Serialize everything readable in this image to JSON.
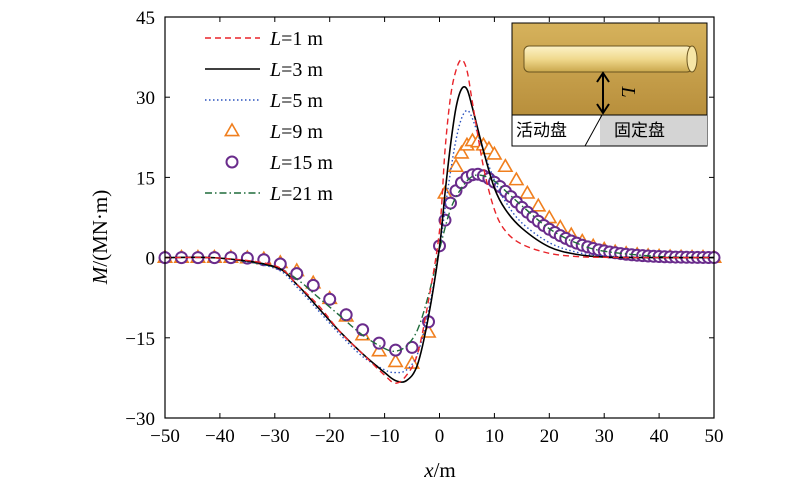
{
  "chart_data": {
    "type": "line",
    "xlabel_var": "x",
    "xlabel_unit": "/m",
    "ylabel_var": "M",
    "ylabel_unit": "/(MN·m)",
    "xlim": [
      -50,
      50
    ],
    "ylim": [
      -30,
      45
    ],
    "xticks": [
      -50,
      -40,
      -30,
      -20,
      -10,
      0,
      10,
      20,
      30,
      40,
      50
    ],
    "yticks": [
      -30,
      -15,
      0,
      15,
      30,
      45
    ],
    "xtick_labels": [
      "−50",
      "−40",
      "−30",
      "−20",
      "−10",
      "0",
      "10",
      "20",
      "30",
      "40",
      "50"
    ],
    "ytick_labels": [
      "−30",
      "−15",
      "0",
      "15",
      "30",
      "45"
    ],
    "grid": false,
    "legend_position": "top-left",
    "series": [
      {
        "name": "L=1 m",
        "legend_var": "L",
        "legend_rest": "=1 m",
        "color": "#e8242a",
        "style": "dashed",
        "x": [
          -50,
          -40,
          -30,
          -26,
          -22,
          -18,
          -14,
          -10,
          -8,
          -6,
          -4,
          -2,
          0,
          1,
          2,
          3,
          4,
          5,
          6,
          8,
          10,
          12,
          15,
          20,
          25,
          30,
          40,
          50
        ],
        "y": [
          0,
          -0.1,
          -1.5,
          -5,
          -9,
          -14,
          -18,
          -22,
          -23.5,
          -22,
          -18,
          -8,
          5,
          20,
          30,
          35,
          37,
          35,
          29,
          17,
          9,
          5,
          2.5,
          0.8,
          0.2,
          0.05,
          0,
          0
        ]
      },
      {
        "name": "L=3 m",
        "legend_var": "L",
        "legend_rest": "=3 m",
        "color": "#000000",
        "style": "solid",
        "x": [
          -50,
          -40,
          -30,
          -26,
          -22,
          -18,
          -14,
          -10,
          -8,
          -6,
          -4,
          -2,
          0,
          1,
          2,
          3,
          4,
          5,
          6,
          8,
          10,
          12,
          15,
          20,
          25,
          30,
          40,
          50
        ],
        "y": [
          0,
          -0.1,
          -1.7,
          -5,
          -9.5,
          -14,
          -18,
          -21.5,
          -23,
          -23,
          -20,
          -11,
          2,
          12,
          21,
          28,
          31.5,
          31.5,
          28,
          20,
          13,
          9,
          5.5,
          2,
          0.6,
          0.1,
          0,
          0
        ]
      },
      {
        "name": "L=5 m",
        "legend_var": "L",
        "legend_rest": "=5 m",
        "color": "#2a52be",
        "style": "dotted",
        "x": [
          -50,
          -40,
          -30,
          -26,
          -22,
          -18,
          -14,
          -10,
          -8,
          -6,
          -4,
          -2,
          0,
          1,
          2,
          3,
          4,
          5,
          6,
          8,
          10,
          12,
          15,
          20,
          25,
          30,
          40,
          50
        ],
        "y": [
          0,
          -0.1,
          -2,
          -5.5,
          -10,
          -14.5,
          -18.5,
          -21,
          -21.5,
          -21,
          -18,
          -10,
          1.5,
          9,
          16,
          22,
          26,
          27.5,
          26,
          20,
          14.5,
          10.5,
          6.5,
          2.8,
          1,
          0.3,
          0,
          0
        ]
      },
      {
        "name": "L=9 m",
        "legend_var": "L",
        "legend_rest": "=9 m",
        "color": "#f07f1e",
        "style": "triangle",
        "x": [
          -50,
          -47,
          -44,
          -41,
          -38,
          -35,
          -32,
          -29,
          -26,
          -23,
          -20,
          -17,
          -14,
          -11,
          -8,
          -5,
          -2,
          1,
          3,
          4,
          5,
          6,
          7,
          8,
          9,
          10,
          12,
          14,
          16,
          18,
          20,
          22,
          24,
          26,
          28,
          30,
          32,
          34,
          36,
          38,
          40,
          42,
          44,
          46,
          48,
          50
        ],
        "y": [
          0,
          0,
          0,
          0,
          0,
          -0.1,
          -0.3,
          -1,
          -2.5,
          -4.8,
          -7.7,
          -11,
          -14.5,
          -17.5,
          -19.5,
          -19.8,
          -14,
          12,
          17,
          19.5,
          21,
          21.8,
          21.6,
          21,
          20.3,
          19.3,
          17,
          14.5,
          12,
          9.6,
          7.4,
          5.6,
          4.2,
          3,
          2.1,
          1.5,
          1,
          0.7,
          0.5,
          0.3,
          0.2,
          0.1,
          0.05,
          0,
          0,
          0
        ]
      },
      {
        "name": "L=15 m",
        "legend_var": "L",
        "legend_rest": "=15 m",
        "color": "#6a2c8c",
        "style": "circle",
        "x": [
          -50,
          -47,
          -44,
          -41,
          -38,
          -35,
          -32,
          -29,
          -26,
          -23,
          -20,
          -17,
          -14,
          -11,
          -8,
          -5,
          -2,
          0,
          1,
          2,
          3,
          4,
          5,
          6,
          7,
          8,
          9,
          10,
          11,
          12,
          13,
          14,
          15,
          16,
          17,
          18,
          19,
          20,
          21,
          22,
          23,
          24,
          25,
          26,
          27,
          28,
          29,
          30,
          31,
          32,
          33,
          34,
          35,
          36,
          37,
          38,
          39,
          40,
          41,
          42,
          43,
          44,
          45,
          46,
          47,
          48,
          49,
          50
        ],
        "y": [
          0,
          0,
          0,
          0,
          0,
          -0.1,
          -0.4,
          -1.2,
          -3,
          -5.2,
          -7.8,
          -10.7,
          -13.5,
          -16,
          -17.3,
          -16.8,
          -12,
          2.2,
          7,
          10.2,
          12.5,
          14,
          15,
          15.5,
          15.6,
          15.3,
          14.8,
          14.1,
          13.3,
          12.4,
          11.4,
          10.4,
          9.4,
          8.5,
          7.6,
          6.8,
          6,
          5.3,
          4.7,
          4.1,
          3.6,
          3.1,
          2.7,
          2.3,
          2,
          1.7,
          1.45,
          1.25,
          1.05,
          0.9,
          0.75,
          0.63,
          0.53,
          0.45,
          0.37,
          0.3,
          0.25,
          0.2,
          0.16,
          0.13,
          0.1,
          0.08,
          0.06,
          0.05,
          0.04,
          0.03,
          0.02,
          0.01
        ]
      },
      {
        "name": "L=21 m",
        "legend_var": "L",
        "legend_rest": "=21 m",
        "color": "#1e6b3a",
        "style": "dashdot",
        "x": [
          -50,
          -40,
          -30,
          -26,
          -22,
          -18,
          -14,
          -10,
          -8,
          -6,
          -4,
          -2,
          0,
          2,
          4,
          6,
          8,
          10,
          12,
          15,
          20,
          25,
          30,
          40,
          50
        ],
        "y": [
          0,
          -0.1,
          -1.8,
          -4,
          -7.5,
          -11,
          -14.5,
          -17,
          -17.5,
          -16.5,
          -13.5,
          -7,
          1.5,
          9,
          13,
          15.2,
          15.3,
          14.3,
          12.5,
          9.7,
          5.4,
          2.7,
          1.2,
          0.2,
          0
        ]
      }
    ]
  },
  "inset": {
    "left_label": "活动盘",
    "right_label": "固定盘",
    "dimension_label": "L"
  }
}
